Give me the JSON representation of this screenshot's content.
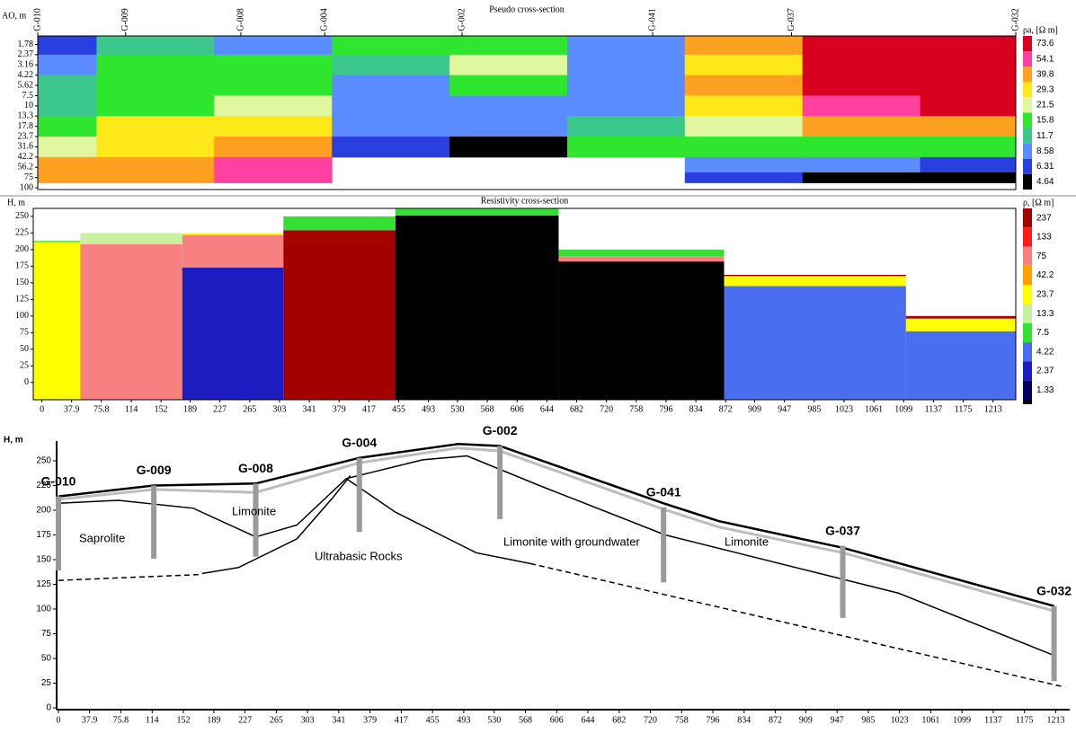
{
  "chart_data": [
    {
      "type": "contour",
      "title": "Pseudo cross-section",
      "ylabel": "AO, m",
      "log_y": true,
      "xlim": [
        0,
        1247
      ],
      "ylim": [
        1.4,
        105
      ],
      "yticks": [
        1.78,
        2.37,
        3.16,
        4.22,
        5.62,
        7.5,
        10,
        13.3,
        17.8,
        23.7,
        31.6,
        42.2,
        56.2,
        75,
        100
      ],
      "stations": [
        {
          "name": "G-010",
          "x": 0
        },
        {
          "name": "G-009",
          "x": 112
        },
        {
          "name": "G-008",
          "x": 259
        },
        {
          "name": "G-004",
          "x": 366
        },
        {
          "name": "G-002",
          "x": 541
        },
        {
          "name": "G-041",
          "x": 784
        },
        {
          "name": "G-037",
          "x": 961
        },
        {
          "name": "G-032",
          "x": 1247
        }
      ],
      "x": [
        0,
        150,
        300,
        450,
        600,
        750,
        900,
        1050,
        1200
      ],
      "y": [
        1.78,
        3.16,
        5.62,
        10,
        17.8,
        31.6,
        56.2,
        75
      ],
      "z": [
        [
          7,
          13,
          9,
          14,
          15,
          9,
          40,
          80,
          80
        ],
        [
          9,
          14,
          14,
          13,
          20,
          9,
          30,
          75,
          75
        ],
        [
          12,
          15,
          18,
          10,
          14,
          9,
          40,
          75,
          75
        ],
        [
          13,
          18,
          25,
          9,
          10,
          9,
          28,
          55,
          75
        ],
        [
          17,
          26,
          30,
          8,
          8,
          12,
          25,
          40,
          40
        ],
        [
          25,
          30,
          40,
          6,
          4.5,
          14,
          14,
          18,
          15
        ],
        [
          40,
          40,
          55,
          null,
          null,
          null,
          8,
          8,
          6
        ],
        [
          40,
          40,
          55,
          null,
          null,
          null,
          6,
          5,
          4.6
        ]
      ],
      "colorbar": {
        "title": "ρa, [Ω m]",
        "levels": [
          {
            "value": 73.6,
            "color": "#d9001f"
          },
          {
            "value": 54.1,
            "color": "#ff40a0"
          },
          {
            "value": 39.8,
            "color": "#ffa020"
          },
          {
            "value": 29.3,
            "color": "#ffe81a"
          },
          {
            "value": 21.5,
            "color": "#e0f7a0"
          },
          {
            "value": 15.8,
            "color": "#2ee62e"
          },
          {
            "value": 11.7,
            "color": "#3cc88c"
          },
          {
            "value": 8.58,
            "color": "#5a8cff"
          },
          {
            "value": 6.31,
            "color": "#2a3fe0"
          },
          {
            "value": 4.64,
            "color": "#000000"
          }
        ]
      }
    },
    {
      "type": "layers",
      "title": "Resistivity cross-section",
      "ylabel": "H, m",
      "xlim": [
        -11,
        1242
      ],
      "ylim": [
        -26,
        262
      ],
      "xticks": [
        0,
        37.9,
        75.8,
        114,
        152,
        189,
        227,
        265,
        303,
        341,
        379,
        417,
        455,
        493,
        530,
        568,
        606,
        644,
        682,
        720,
        758,
        796,
        834,
        872,
        909,
        947,
        985,
        1023,
        1061,
        1099,
        1137,
        1175,
        1213
      ],
      "yticks": [
        0,
        25,
        50,
        75,
        100,
        125,
        150,
        175,
        200,
        225,
        250
      ],
      "columns": [
        {
          "x": [
            -11,
            49
          ],
          "layers": [
            {
              "top": 213,
              "rho": 7.5
            },
            {
              "top": 211,
              "rho": 25
            }
          ]
        },
        {
          "x": [
            49,
            179
          ],
          "layers": [
            {
              "top": 225,
              "rho": 14
            },
            {
              "top": 208,
              "rho": 70
            }
          ]
        },
        {
          "x": [
            179,
            308
          ],
          "layers": [
            {
              "top": 225,
              "rho": 26
            },
            {
              "top": 222,
              "rho": 70
            },
            {
              "top": 173,
              "rho": 2.2
            }
          ]
        },
        {
          "x": [
            308,
            451
          ],
          "layers": [
            {
              "top": 250,
              "rho": 7
            },
            {
              "top": 229,
              "rho": 240
            }
          ]
        },
        {
          "x": [
            451,
            659
          ],
          "layers": [
            {
              "top": 262,
              "rho": 7
            },
            {
              "top": 251,
              "rho": 1
            }
          ]
        },
        {
          "x": [
            659,
            870
          ],
          "layers": [
            {
              "top": 200,
              "rho": 7.5
            },
            {
              "top": 190,
              "rho": 70
            },
            {
              "top": 182,
              "rho": 1
            }
          ]
        },
        {
          "x": [
            870,
            1102
          ],
          "layers": [
            {
              "top": 162,
              "rho": 240
            },
            {
              "top": 160,
              "rho": 25
            },
            {
              "top": 145,
              "rho": 4
            }
          ]
        },
        {
          "x": [
            1102,
            1242
          ],
          "layers": [
            {
              "top": 100,
              "rho": 240
            },
            {
              "top": 96,
              "rho": 25
            },
            {
              "top": 77,
              "rho": 4
            }
          ]
        }
      ],
      "colorbar": {
        "title": "ρ, [Ω m]",
        "below_color": "#000000",
        "levels": [
          {
            "value": 237,
            "color": "#a50000"
          },
          {
            "value": 133,
            "color": "#ff1a1a"
          },
          {
            "value": 75,
            "color": "#f88080"
          },
          {
            "value": 42.2,
            "color": "#ffa000"
          },
          {
            "value": 23.7,
            "color": "#ffff00"
          },
          {
            "value": 13.3,
            "color": "#c8f0a0"
          },
          {
            "value": 7.5,
            "color": "#33e033"
          },
          {
            "value": 4.22,
            "color": "#4a6ef0"
          },
          {
            "value": 2.37,
            "color": "#1c1cc0"
          },
          {
            "value": 1.33,
            "color": "#000060"
          }
        ]
      }
    },
    {
      "type": "profile",
      "ylabel": "H, m",
      "xlim": [
        0,
        1230
      ],
      "ylim": [
        0,
        270
      ],
      "xticks": [
        0,
        37.9,
        75.8,
        114,
        152,
        189,
        227,
        265,
        303,
        341,
        379,
        417,
        455,
        493,
        530,
        568,
        606,
        644,
        682,
        720,
        758,
        796,
        834,
        872,
        909,
        947,
        985,
        1023,
        1061,
        1099,
        1137,
        1175,
        1213
      ],
      "yticks": [
        0,
        25,
        50,
        75,
        100,
        125,
        150,
        175,
        200,
        225,
        250
      ],
      "wells": [
        {
          "name": "G-010",
          "x": 0,
          "top": 214,
          "bottom": 139
        },
        {
          "name": "G-009",
          "x": 116,
          "top": 225,
          "bottom": 151
        },
        {
          "name": "G-008",
          "x": 240,
          "top": 227,
          "bottom": 153
        },
        {
          "name": "G-004",
          "x": 366,
          "top": 253,
          "bottom": 178
        },
        {
          "name": "G-002",
          "x": 537,
          "top": 265,
          "bottom": 191
        },
        {
          "name": "G-041",
          "x": 736,
          "top": 203,
          "bottom": 127
        },
        {
          "name": "G-037",
          "x": 954,
          "top": 164,
          "bottom": 91
        },
        {
          "name": "G-032",
          "x": 1211,
          "top": 103,
          "bottom": 27
        }
      ],
      "lines": [
        {
          "style": "gray",
          "x": [
            0,
            116,
            240,
            366,
            486,
            537,
            736,
            803,
            954,
            1211
          ],
          "y": [
            211,
            221,
            218,
            248,
            263,
            260,
            201,
            183,
            157,
            98
          ]
        },
        {
          "style": "thick",
          "x": [
            0,
            116,
            240,
            366,
            486,
            537,
            736,
            803,
            954,
            1211
          ],
          "y": [
            214,
            225,
            227,
            253,
            267,
            265,
            207,
            189,
            162,
            103
          ]
        },
        {
          "style": "thin",
          "x": [
            0,
            73,
            164,
            240,
            290,
            350
          ],
          "y": [
            207,
            210,
            202,
            173,
            185,
            232
          ]
        },
        {
          "style": "thin",
          "x": [
            350,
            443,
            497,
            585,
            738,
            1022,
            1211
          ],
          "y": [
            232,
            251,
            255,
            225,
            175,
            116,
            53
          ]
        },
        {
          "style": "thin",
          "x": [
            350,
            410,
            508,
            574
          ],
          "y": [
            232,
            198,
            157,
            146
          ]
        },
        {
          "style": "dashed",
          "x": [
            574,
            1224
          ],
          "y": [
            146,
            21
          ]
        },
        {
          "style": "dashed",
          "x": [
            0,
            175
          ],
          "y": [
            129,
            135
          ]
        },
        {
          "style": "thin",
          "x": [
            175,
            219,
            290,
            333,
            355
          ],
          "y": [
            136,
            142,
            171,
            212,
            235
          ]
        }
      ],
      "annotations": [
        "Saprolite",
        "Limonite",
        "Ultrabasic Rocks",
        "Limonite with groundwater",
        "Limonite"
      ]
    }
  ]
}
